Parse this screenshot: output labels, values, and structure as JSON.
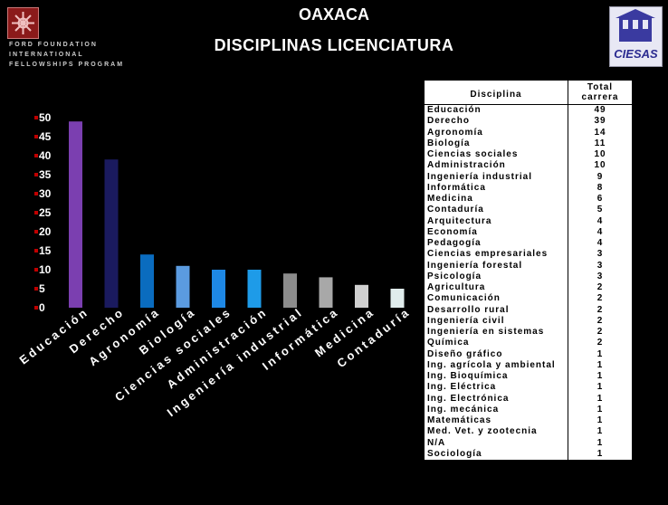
{
  "header": {
    "title": "OAXACA",
    "subtitle": "DISCIPLINAS LICENCIATURA",
    "ford_lines": [
      "FORD FOUNDATION",
      "INTERNATIONAL",
      "FELLOWSHIPS PROGRAM"
    ],
    "ciesas_label": "CIESAS"
  },
  "chart_data": {
    "type": "bar",
    "title": "",
    "xlabel": "",
    "ylabel": "",
    "ylim": [
      0,
      50
    ],
    "yticks": [
      0,
      5,
      10,
      15,
      20,
      25,
      30,
      35,
      40,
      45,
      50
    ],
    "grid": false,
    "legend": "none",
    "categories": [
      "Educación",
      "Derecho",
      "Agronomía",
      "Biología",
      "Ciencias sociales",
      "Administración",
      "Ingeniería industrial",
      "Informática",
      "Medicina",
      "Contaduría"
    ],
    "values": [
      49,
      39,
      14,
      11,
      10,
      10,
      9,
      8,
      6,
      5
    ],
    "colors": [
      "#7b3fb0",
      "#1a1a5e",
      "#0a6cbf",
      "#5b9be0",
      "#1e88e5",
      "#1e9be8",
      "#8c8c8c",
      "#a8a8a8",
      "#d0d0d0",
      "#e0ecec"
    ]
  },
  "table": {
    "header_discipline": "Disciplina",
    "header_total": "Total carrera",
    "rows": [
      {
        "name": "Educación",
        "total": "49"
      },
      {
        "name": "Derecho",
        "total": "39"
      },
      {
        "name": "Agronomía",
        "total": "14"
      },
      {
        "name": "Biología",
        "total": "11"
      },
      {
        "name": "Ciencias sociales",
        "total": "10"
      },
      {
        "name": "Administración",
        "total": "10"
      },
      {
        "name": "Ingeniería industrial",
        "total": "9"
      },
      {
        "name": "Informática",
        "total": "8"
      },
      {
        "name": "Medicina",
        "total": "6"
      },
      {
        "name": "Contaduría",
        "total": "5"
      },
      {
        "name": "Arquitectura",
        "total": "4"
      },
      {
        "name": "Economía",
        "total": "4"
      },
      {
        "name": "Pedagogía",
        "total": "4"
      },
      {
        "name": "Ciencias empresariales",
        "total": "3"
      },
      {
        "name": "Ingeniería forestal",
        "total": "3"
      },
      {
        "name": "Psicología",
        "total": "3"
      },
      {
        "name": "Agricultura",
        "total": "2"
      },
      {
        "name": "Comunicación",
        "total": "2"
      },
      {
        "name": "Desarrollo rural",
        "total": "2"
      },
      {
        "name": "Ingeniería civil",
        "total": "2"
      },
      {
        "name": "Ingeniería en sistemas",
        "total": "2"
      },
      {
        "name": "Química",
        "total": "2"
      },
      {
        "name": "Diseño gráfico",
        "total": "1"
      },
      {
        "name": "Ing. agrícola y ambiental",
        "total": "1"
      },
      {
        "name": "Ing. Bioquímica",
        "total": "1"
      },
      {
        "name": "Ing. Eléctrica",
        "total": "1"
      },
      {
        "name": "Ing. Electrónica",
        "total": "1"
      },
      {
        "name": "Ing. mecánica",
        "total": "1"
      },
      {
        "name": "Matemáticas",
        "total": "1"
      },
      {
        "name": "Med. Vet. y zootecnia",
        "total": "1"
      },
      {
        "name": "N/A",
        "total": "1"
      },
      {
        "name": "Sociología",
        "total": "1"
      }
    ]
  }
}
